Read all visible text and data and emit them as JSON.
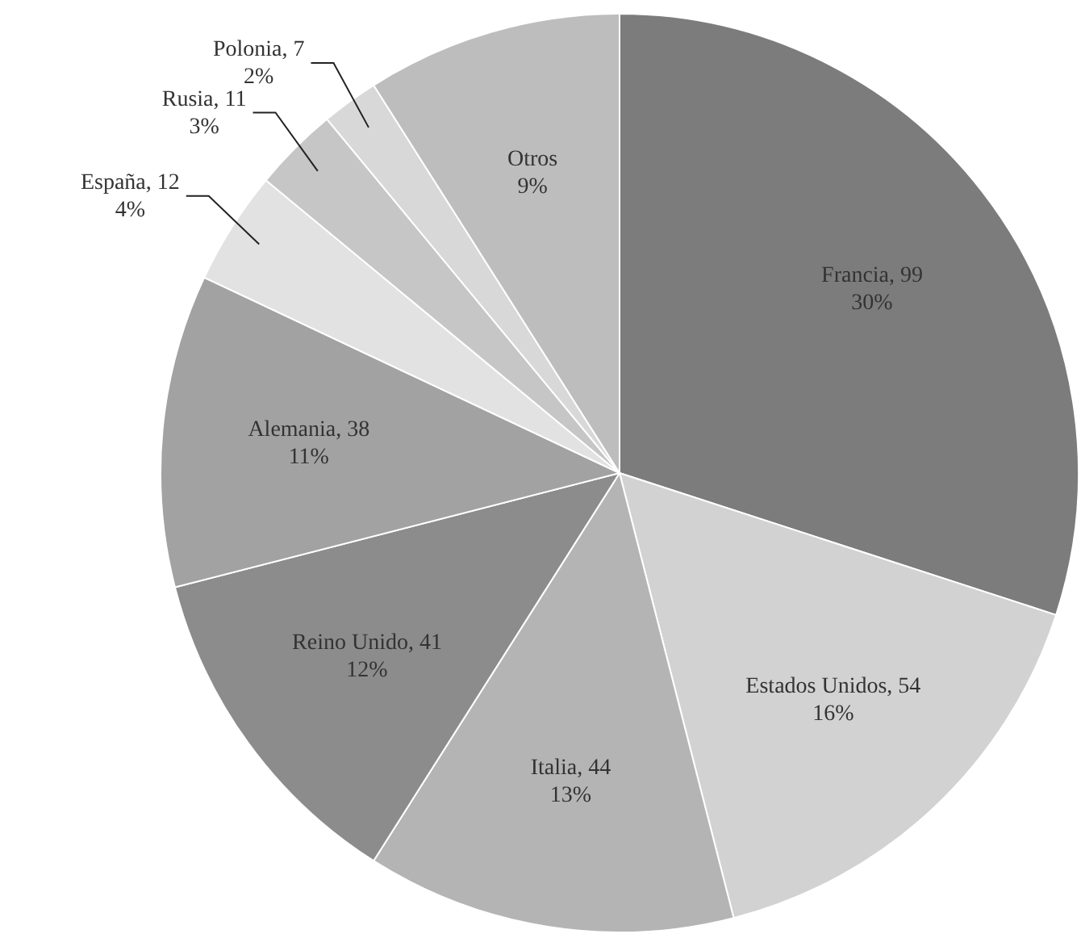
{
  "chart_data": {
    "type": "pie",
    "categories": [
      "Francia, 99",
      "Estados Unidos, 54",
      "Italia, 44",
      "Reino Unido, 41",
      "Alemania, 38",
      "España, 12",
      "Rusia, 11",
      "Polonia, 7",
      "Otros"
    ],
    "values": [
      30,
      16,
      13,
      12,
      11,
      4,
      3,
      2,
      9
    ],
    "value_labels": [
      "30%",
      "16%",
      "13%",
      "12%",
      "11%",
      "4%",
      "3%",
      "2%",
      "9%"
    ],
    "colors": [
      "#7c7c7c",
      "#d2d2d2",
      "#b4b4b4",
      "#8c8c8c",
      "#a2a2a2",
      "#e2e2e2",
      "#c6c6c6",
      "#d8d8d8",
      "#bdbdbd"
    ],
    "legend": false
  }
}
